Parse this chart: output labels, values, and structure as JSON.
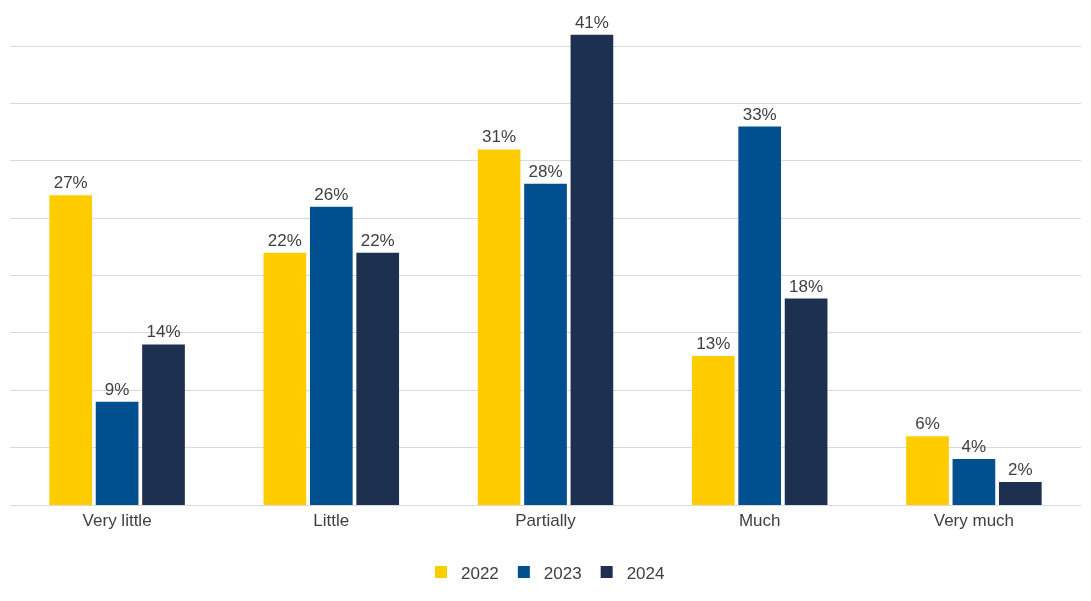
{
  "chart_data": {
    "type": "bar",
    "categories": [
      "Very little",
      "Little",
      "Partially",
      "Much",
      "Very much"
    ],
    "series": [
      {
        "name": "2022",
        "color": "#ffcc00",
        "values": [
          27,
          22,
          31,
          13,
          6
        ],
        "value_labels": [
          "27%",
          "22%",
          "31%",
          "13%",
          "6%"
        ]
      },
      {
        "name": "2023",
        "color": "#00508f",
        "values": [
          9,
          26,
          28,
          33,
          4
        ],
        "value_labels": [
          "9%",
          "26%",
          "28%",
          "33%",
          "4%"
        ]
      },
      {
        "name": "2024",
        "color": "#1e3050",
        "values": [
          14,
          22,
          41,
          18,
          2
        ],
        "value_labels": [
          "14%",
          "22%",
          "41%",
          "18%",
          "2%"
        ]
      }
    ],
    "grid": "y",
    "legend": "bottom",
    "tick_labels": "x"
  }
}
